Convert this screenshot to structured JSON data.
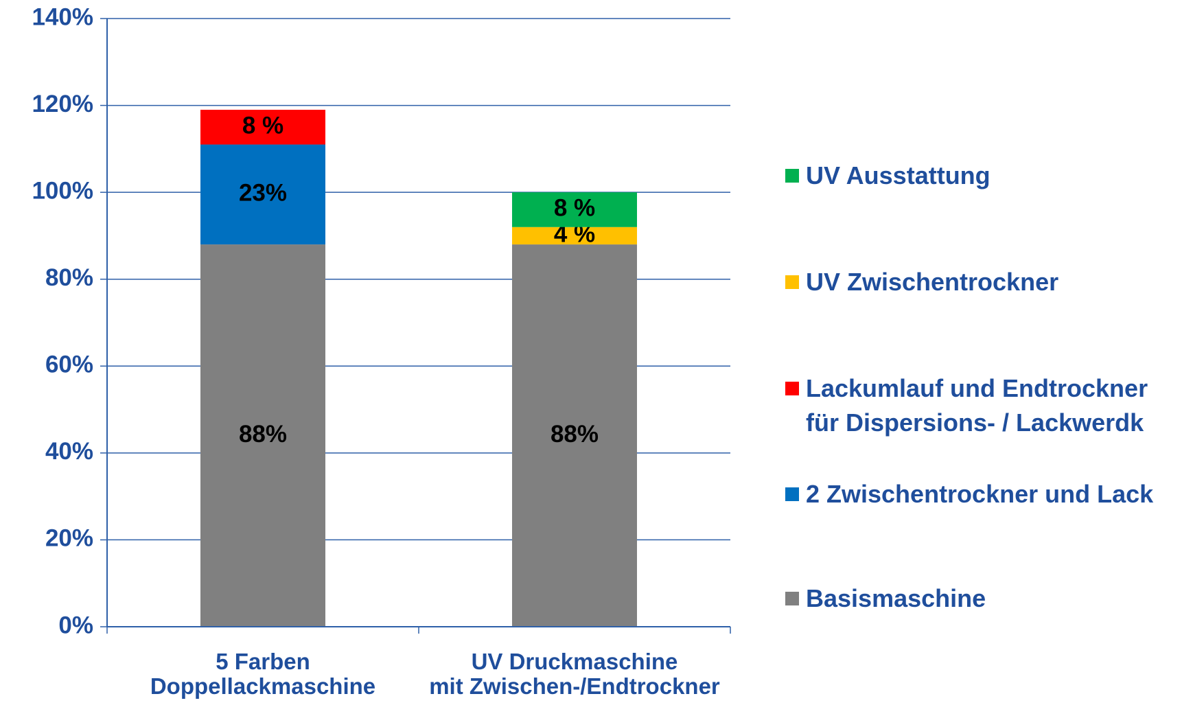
{
  "chart_data": {
    "type": "stacked_bar",
    "categories": [
      "5 Farben\nDoppellackmaschine",
      "UV Druckmaschine\nmit Zwischen-/Endtrockner"
    ],
    "series": [
      {
        "name": "Basismaschine",
        "color": "#808080",
        "values": [
          88,
          88
        ],
        "value_labels": [
          "88%",
          "88%"
        ]
      },
      {
        "name": "2 Zwischentrockner und Lack",
        "color": "#0070c0",
        "values": [
          23,
          null
        ],
        "value_labels": [
          "23%",
          null
        ]
      },
      {
        "name": "Lackumlauf und Endtrockner\nfür Dispersions- / Lackwerdk",
        "color": "#ff0000",
        "values": [
          8,
          null
        ],
        "value_labels": [
          "8 %",
          null
        ]
      },
      {
        "name": "UV Zwischentrockner",
        "color": "#ffc000",
        "values": [
          null,
          4
        ],
        "value_labels": [
          null,
          "4 %"
        ]
      },
      {
        "name": "UV Ausstattung",
        "color": "#00b050",
        "values": [
          null,
          8
        ],
        "value_labels": [
          null,
          "8 %"
        ]
      }
    ],
    "ylim": [
      0,
      140
    ],
    "yticks": [
      {
        "value": 0,
        "label": "0%"
      },
      {
        "value": 20,
        "label": "20%"
      },
      {
        "value": 40,
        "label": "40%"
      },
      {
        "value": 60,
        "label": "60%"
      },
      {
        "value": 80,
        "label": "80%"
      },
      {
        "value": 100,
        "label": "100%"
      },
      {
        "value": 120,
        "label": "120%"
      },
      {
        "value": 140,
        "label": "140%"
      }
    ],
    "grid": true,
    "legend": "right"
  }
}
